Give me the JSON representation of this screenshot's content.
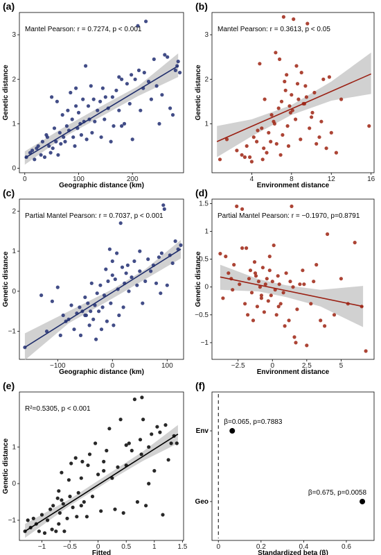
{
  "chart_data": [
    {
      "panel": "(a)",
      "type": "scatter",
      "annotation": "Mantel Pearson: r = 0.7274, p < 0.001",
      "xlabel": "Geographic distance (km)",
      "ylabel": "Genetic distance",
      "xlim": [
        -10,
        295
      ],
      "ylim": [
        -0.1,
        3.5
      ],
      "xticks": [
        0,
        100,
        200
      ],
      "yticks": [
        0,
        1,
        2,
        3
      ],
      "point_color": "#2e3a7a",
      "line_color": "#1f2d6b",
      "fit": {
        "x": [
          0,
          285
        ],
        "y": [
          0.23,
          2.3
        ]
      },
      "band": {
        "x": [
          0,
          70,
          140,
          210,
          285
        ],
        "lo": [
          0.08,
          0.68,
          1.15,
          1.62,
          2.05
        ],
        "hi": [
          0.38,
          0.9,
          1.38,
          1.84,
          2.58
        ]
      },
      "x": [
        3,
        10,
        14,
        18,
        22,
        25,
        30,
        33,
        37,
        40,
        42,
        45,
        48,
        50,
        52,
        55,
        58,
        60,
        62,
        65,
        67,
        70,
        72,
        75,
        78,
        80,
        82,
        85,
        88,
        90,
        93,
        95,
        98,
        100,
        103,
        105,
        108,
        110,
        113,
        115,
        118,
        120,
        123,
        125,
        128,
        130,
        135,
        140,
        142,
        145,
        148,
        150,
        155,
        160,
        163,
        165,
        170,
        175,
        180,
        185,
        190,
        195,
        198,
        200,
        205,
        210,
        212,
        215,
        220,
        222,
        225,
        230,
        235,
        240,
        245,
        250,
        255,
        260,
        265,
        270,
        275,
        280,
        283,
        285,
        288,
        95,
        175,
        180
      ],
      "y": [
        0.25,
        0.35,
        0.4,
        0.2,
        0.45,
        0.5,
        0.3,
        0.6,
        0.25,
        0.75,
        0.7,
        0.5,
        0.35,
        1.6,
        0.45,
        0.9,
        0.6,
        1.5,
        0.3,
        0.8,
        0.55,
        1.2,
        0.7,
        0.6,
        0.95,
        1.3,
        0.85,
        1.7,
        1.1,
        0.7,
        0.5,
        1.4,
        0.9,
        1.25,
        1.0,
        0.75,
        1.55,
        1.05,
        2.3,
        0.65,
        1.4,
        1.1,
        1.85,
        0.8,
        1.55,
        1.05,
        1.3,
        1.5,
        0.7,
        1.8,
        1.1,
        1.6,
        1.35,
        0.6,
        1.6,
        0.95,
        1.75,
        1.3,
        2.0,
        1.0,
        1.9,
        1.45,
        2.1,
        0.65,
        2.0,
        3.2,
        2.2,
        1.3,
        1.8,
        2.15,
        3.3,
        1.95,
        1.55,
        2.45,
        1.85,
        1.0,
        1.65,
        2.55,
        2.5,
        1.35,
        1.2,
        2.2,
        2.3,
        2.4,
        2.15,
        1.8,
        2.05,
        0.95
      ]
    },
    {
      "panel": "(b)",
      "type": "scatter",
      "annotation": "Mantel Pearson: r = 0.3613, p < 0.05",
      "xlabel": "Environment distance",
      "ylabel": "Genetic distance",
      "xlim": [
        0,
        16.3
      ],
      "ylim": [
        -0.1,
        3.5
      ],
      "xticks": [
        4,
        8,
        12,
        16
      ],
      "yticks": [
        1,
        2,
        3
      ],
      "point_color": "#a3301f",
      "line_color": "#9a1f12",
      "fit": {
        "x": [
          0.5,
          16
        ],
        "y": [
          0.6,
          2.12
        ]
      },
      "band": {
        "x": [
          0.5,
          4,
          8,
          12,
          16
        ],
        "lo": [
          0.25,
          0.72,
          1.2,
          1.52,
          1.67
        ],
        "hi": [
          0.95,
          1.1,
          1.42,
          1.95,
          2.6
        ]
      },
      "x": [
        0.8,
        1.5,
        2.5,
        3.0,
        3.5,
        3.8,
        4.2,
        4.5,
        4.8,
        5.0,
        5.2,
        5.3,
        5.5,
        5.7,
        6.0,
        6.2,
        6.4,
        6.5,
        6.7,
        6.8,
        7.0,
        7.1,
        7.3,
        7.5,
        7.6,
        7.8,
        8.0,
        8.2,
        8.4,
        8.5,
        8.7,
        8.9,
        9.0,
        9.2,
        9.4,
        9.6,
        9.8,
        10.0,
        10.3,
        10.5,
        10.8,
        11.0,
        11.2,
        11.5,
        12.0,
        12.5,
        13.0,
        15.8,
        7.2,
        7.9,
        6.9,
        5.1,
        4.6,
        8.6,
        9.3,
        7.4,
        6.3,
        5.9,
        3.3,
        4.0,
        10.1,
        11.8,
        8.1,
        9.5,
        7.7
      ],
      "y": [
        0.2,
        0.65,
        0.4,
        0.3,
        0.5,
        0.25,
        0.7,
        0.6,
        2.35,
        0.9,
        0.45,
        1.55,
        0.35,
        0.8,
        1.2,
        1.05,
        2.6,
        0.55,
        1.35,
        2.45,
        1.5,
        0.75,
        1.95,
        2.1,
        0.95,
        1.4,
        1.65,
        3.35,
        1.1,
        2.3,
        1.55,
        0.65,
        2.15,
        1.45,
        1.85,
        3.25,
        0.9,
        1.15,
        1.7,
        0.55,
        0.7,
        1.05,
        2.0,
        0.45,
        0.8,
        0.35,
        1.55,
        0.95,
        3.4,
        1.25,
        0.3,
        0.2,
        0.85,
        1.9,
        1.45,
        1.75,
        1.0,
        0.6,
        0.25,
        0.15,
        1.25,
        2.05,
        1.3,
        1.6,
        0.5
      ]
    },
    {
      "panel": "(c)",
      "type": "scatter",
      "annotation": "Partial Mantel Pearson: r = 0.7037, p < 0.001",
      "xlabel": "Geographic distance (km)",
      "ylabel": "Genetic distance",
      "xlim": [
        -170,
        130
      ],
      "ylim": [
        -1.7,
        2.3
      ],
      "xticks": [
        -100,
        0,
        100
      ],
      "yticks": [
        -1,
        0,
        1,
        2
      ],
      "point_color": "#2e3a7a",
      "line_color": "#1f2d6b",
      "fit": {
        "x": [
          -160,
          125
        ],
        "y": [
          -1.4,
          1.05
        ]
      },
      "band": {
        "x": [
          -160,
          -80,
          0,
          60,
          125
        ],
        "lo": [
          -1.72,
          -0.8,
          -0.18,
          0.3,
          0.82
        ],
        "hi": [
          -1.05,
          -0.5,
          0.05,
          0.55,
          1.28
        ]
      },
      "x": [
        -160,
        -130,
        -120,
        -110,
        -95,
        -90,
        -85,
        -80,
        -75,
        -70,
        -65,
        -60,
        -58,
        -55,
        -50,
        -48,
        -45,
        -42,
        -40,
        -38,
        -35,
        -32,
        -30,
        -28,
        -25,
        -22,
        -20,
        -18,
        -15,
        -12,
        -10,
        -8,
        -5,
        -3,
        0,
        2,
        5,
        8,
        10,
        12,
        15,
        18,
        20,
        22,
        25,
        28,
        30,
        35,
        40,
        45,
        50,
        55,
        60,
        65,
        70,
        75,
        80,
        85,
        90,
        95,
        100,
        105,
        110,
        115,
        120,
        125,
        -100,
        -50,
        0,
        50,
        88,
        93
      ],
      "y": [
        -1.4,
        -0.1,
        -1.0,
        -0.25,
        -1.1,
        -0.6,
        -0.75,
        -0.7,
        -0.35,
        -0.95,
        -0.55,
        -0.4,
        -1.1,
        -0.5,
        -0.15,
        -0.6,
        -0.3,
        -0.85,
        -0.5,
        0.2,
        -0.7,
        -0.35,
        -1.2,
        -0.05,
        -0.5,
        0.15,
        -0.95,
        -0.4,
        -0.1,
        0.55,
        -0.75,
        0.25,
        1.05,
        -0.3,
        0.4,
        -0.85,
        0.3,
        0.95,
        0.05,
        -0.6,
        1.7,
        0.6,
        -0.4,
        0.2,
        0.45,
        0.65,
        0.0,
        0.35,
        0.75,
        0.15,
        0.5,
        -0.3,
        0.25,
        0.8,
        0.5,
        0.65,
        0.2,
        0.85,
        0.95,
        2.05,
        0.15,
        0.9,
        0.7,
        1.25,
        1.05,
        1.15,
        0.1,
        -0.6,
        0.75,
        1.0,
        -0.05,
        2.15
      ]
    },
    {
      "panel": "(d)",
      "type": "scatter",
      "annotation": "Partial Mantel Pearson: r = −0.1970, p=0.8791",
      "xlabel": "Environment distance",
      "ylabel": "Genetic distance",
      "xlim": [
        -4.4,
        7.4
      ],
      "ylim": [
        -1.3,
        1.58
      ],
      "xticks": [
        -2.5,
        0,
        2.5,
        5
      ],
      "yticks": [
        -1,
        -0.5,
        0,
        0.5,
        1,
        1.5
      ],
      "point_color": "#a3301f",
      "line_color": "#9a1f12",
      "fit": {
        "x": [
          -3.8,
          6.6
        ],
        "y": [
          0.18,
          -0.35
        ]
      },
      "band": {
        "x": [
          -3.8,
          -1,
          1,
          3.5,
          6.6
        ],
        "lo": [
          -0.05,
          -0.08,
          -0.18,
          -0.35,
          -0.72
        ],
        "hi": [
          0.4,
          0.14,
          0.03,
          -0.05,
          0.02
        ]
      },
      "x": [
        -3.8,
        -3.6,
        -3.4,
        -3.2,
        -3.0,
        -2.8,
        -2.6,
        -2.4,
        -2.2,
        -2.0,
        -1.9,
        -1.8,
        -1.6,
        -1.5,
        -1.4,
        -1.3,
        -1.2,
        -1.1,
        -1.0,
        -0.9,
        -0.8,
        -0.7,
        -0.6,
        -0.5,
        -0.4,
        -0.3,
        -0.2,
        -0.1,
        0.0,
        0.1,
        0.2,
        0.3,
        0.4,
        0.5,
        0.6,
        0.8,
        1.0,
        1.2,
        1.4,
        1.5,
        1.6,
        1.8,
        2.0,
        2.2,
        2.5,
        2.8,
        3.0,
        3.2,
        3.5,
        4.0,
        4.5,
        5.0,
        5.5,
        6.0,
        6.5,
        6.8,
        -2.9,
        -0.2,
        1.7,
        -1.7,
        0.9,
        2.3,
        -2.2,
        -0.8,
        0.45,
        1.3,
        3.8,
        -1.25
      ],
      "y": [
        0.6,
        -0.2,
        0.55,
        0.25,
        0.15,
        0.4,
        1.45,
        0.05,
        1.4,
        -0.3,
        0.7,
        -0.5,
        0.3,
        -0.1,
        -0.6,
        0.45,
        0.2,
        -0.35,
        0.1,
        0.0,
        -0.2,
        0.35,
        -0.45,
        0.05,
        0.15,
        -0.25,
        0.3,
        -0.15,
        0.1,
        0.75,
        -0.05,
        -0.5,
        0.2,
        0.05,
        -0.3,
        -0.1,
        0.25,
        -0.6,
        1.45,
        0.0,
        -0.9,
        -0.4,
        0.05,
        0.3,
        -1.05,
        -0.3,
        0.1,
        0.4,
        -0.6,
        0.95,
        -0.5,
        0.15,
        -0.3,
        0.8,
        -0.35,
        -1.15,
        -0.05,
        0.55,
        -1.0,
        0.15,
        -0.7,
        0.05,
        0.7,
        -0.15,
        -0.35,
        0.1,
        -0.7,
        0.25
      ]
    },
    {
      "panel": "(e)",
      "type": "scatter",
      "annotation": "R²=0.5305, p < 0.001",
      "xlabel": "Fitted",
      "ylabel": "Genetic distance",
      "xlim": [
        -1.4,
        1.52
      ],
      "ylim": [
        -1.55,
        2.5
      ],
      "xticks": [
        -1,
        -0.5,
        0,
        0.5,
        1,
        1.5
      ],
      "yticks": [
        -1,
        0,
        1
      ],
      "point_color": "#111111",
      "line_color": "#000000",
      "fit": {
        "x": [
          -1.3,
          1.42
        ],
        "y": [
          -1.3,
          1.35
        ]
      },
      "band": {
        "x": [
          -1.3,
          -0.5,
          0.2,
          0.8,
          1.42
        ],
        "lo": [
          -1.48,
          -0.6,
          0.08,
          0.62,
          1.1
        ],
        "hi": [
          -1.1,
          -0.42,
          0.28,
          0.88,
          1.6
        ]
      },
      "x": [
        -1.3,
        -1.25,
        -1.2,
        -1.15,
        -1.1,
        -1.05,
        -1.0,
        -0.95,
        -0.9,
        -0.85,
        -0.82,
        -0.8,
        -0.75,
        -0.72,
        -0.7,
        -0.68,
        -0.65,
        -0.62,
        -0.6,
        -0.55,
        -0.52,
        -0.5,
        -0.48,
        -0.45,
        -0.4,
        -0.38,
        -0.35,
        -0.3,
        -0.28,
        -0.25,
        -0.2,
        -0.18,
        -0.15,
        -0.1,
        -0.05,
        0.0,
        0.05,
        0.1,
        0.15,
        0.2,
        0.25,
        0.3,
        0.35,
        0.4,
        0.45,
        0.5,
        0.55,
        0.6,
        0.65,
        0.7,
        0.75,
        0.78,
        0.8,
        0.85,
        0.9,
        0.95,
        1.0,
        1.05,
        1.1,
        1.15,
        1.2,
        1.25,
        1.3,
        1.35,
        1.4,
        -0.7,
        -0.3,
        0.1,
        0.5,
        0.9,
        0.77,
        -0.65
      ],
      "y": [
        -1.3,
        -1.0,
        -1.2,
        -0.95,
        -1.1,
        -1.3,
        -0.85,
        -1.35,
        -1.0,
        -0.7,
        -1.25,
        -0.6,
        -1.3,
        -0.4,
        -0.2,
        -0.8,
        0.3,
        -0.55,
        -1.3,
        -0.95,
        0.1,
        -0.35,
        0.55,
        -0.65,
        0.7,
        -0.9,
        -0.25,
        0.15,
        0.6,
        -0.5,
        -0.9,
        0.5,
        0.8,
        -0.35,
        1.1,
        0.25,
        -0.75,
        0.6,
        0.9,
        1.5,
        0.15,
        -0.7,
        0.45,
        1.75,
        -0.8,
        0.5,
        1.1,
        0.9,
        2.3,
        -0.5,
        1.2,
        2.35,
        1.75,
        -0.6,
        1.0,
        1.35,
        0.35,
        1.55,
        1.4,
        -0.85,
        1.6,
        0.65,
        1.1,
        1.3,
        1.1,
        -1.1,
        -0.6,
        0.35,
        1.05,
        0.0,
        0.8,
        -0.45
      ]
    },
    {
      "panel": "(f)",
      "type": "scatter",
      "xlabel": "Standardized beta (β)",
      "ylabel": "",
      "xlim": [
        -0.03,
        0.73
      ],
      "ylim": [
        0.45,
        2.55
      ],
      "xticks": [
        0,
        0.2,
        0.4,
        0.6
      ],
      "categories": [
        "Env",
        "Geo"
      ],
      "reference_line": 0,
      "points": [
        {
          "category": "Env",
          "beta": 0.065,
          "label": "β=0.065, p=0.7883"
        },
        {
          "category": "Geo",
          "beta": 0.675,
          "label": "β=0.675, p=0.0058"
        }
      ]
    }
  ]
}
